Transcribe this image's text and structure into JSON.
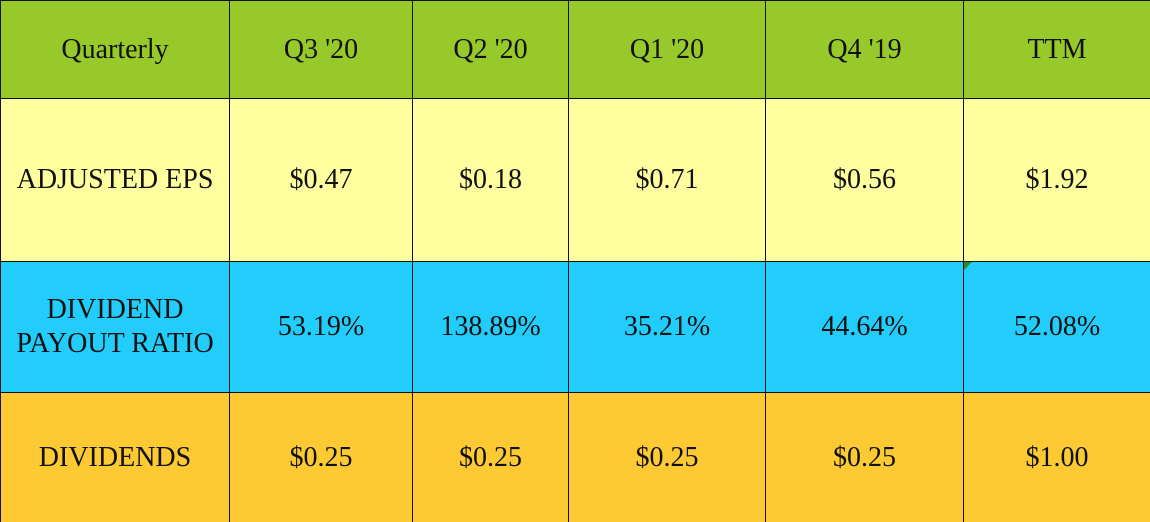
{
  "table": {
    "header": [
      "Quarterly",
      "Q3 '20",
      "Q2 '20",
      "Q1 '20",
      "Q4 '19",
      "TTM"
    ],
    "rows": [
      [
        "ADJUSTED EPS",
        "$0.47",
        "$0.18",
        "$0.71",
        "$0.56",
        "$1.92"
      ],
      [
        "DIVIDEND PAYOUT RATIO",
        "53.19%",
        "138.89%",
        "35.21%",
        "44.64%",
        "52.08%"
      ],
      [
        "DIVIDENDS",
        "$0.25",
        "$0.25",
        "$0.25",
        "$0.25",
        "$1.00"
      ]
    ]
  }
}
